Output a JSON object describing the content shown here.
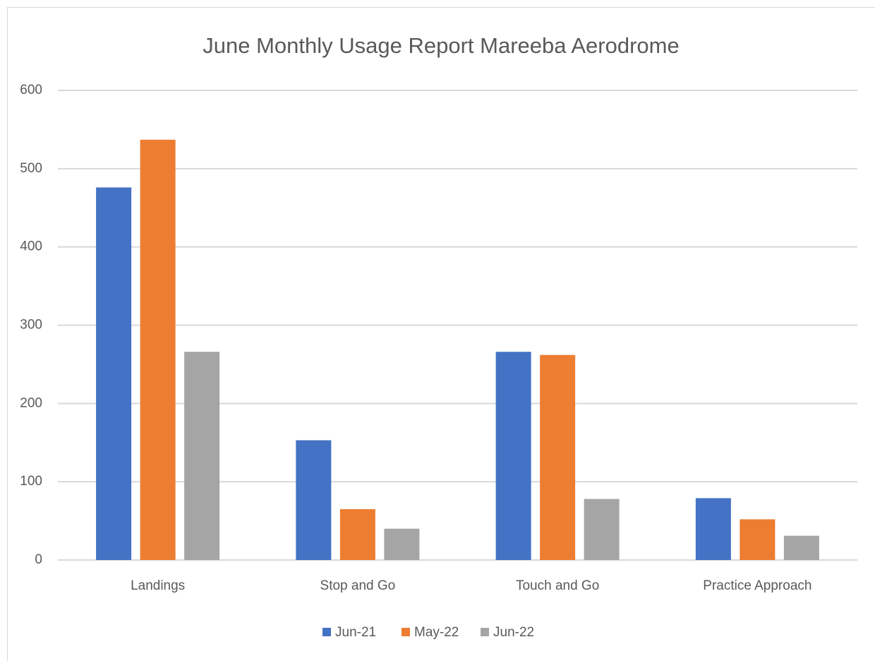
{
  "chart_data": {
    "type": "bar",
    "title": "June Monthly Usage Report Mareeba Aerodrome",
    "categories": [
      "Landings",
      "Stop and Go",
      "Touch and Go",
      "Practice Approach"
    ],
    "series": [
      {
        "name": "Jun-21",
        "color": "#4472c4",
        "values": [
          476,
          153,
          266,
          79
        ]
      },
      {
        "name": "May-22",
        "color": "#ed7d31",
        "values": [
          537,
          65,
          262,
          52
        ]
      },
      {
        "name": "Jun-22",
        "color": "#a5a5a5",
        "values": [
          266,
          40,
          78,
          31
        ]
      }
    ],
    "ylim": [
      0,
      600
    ],
    "yticks": [
      0,
      100,
      200,
      300,
      400,
      500,
      600
    ],
    "grid": true,
    "legend": "bottom"
  }
}
